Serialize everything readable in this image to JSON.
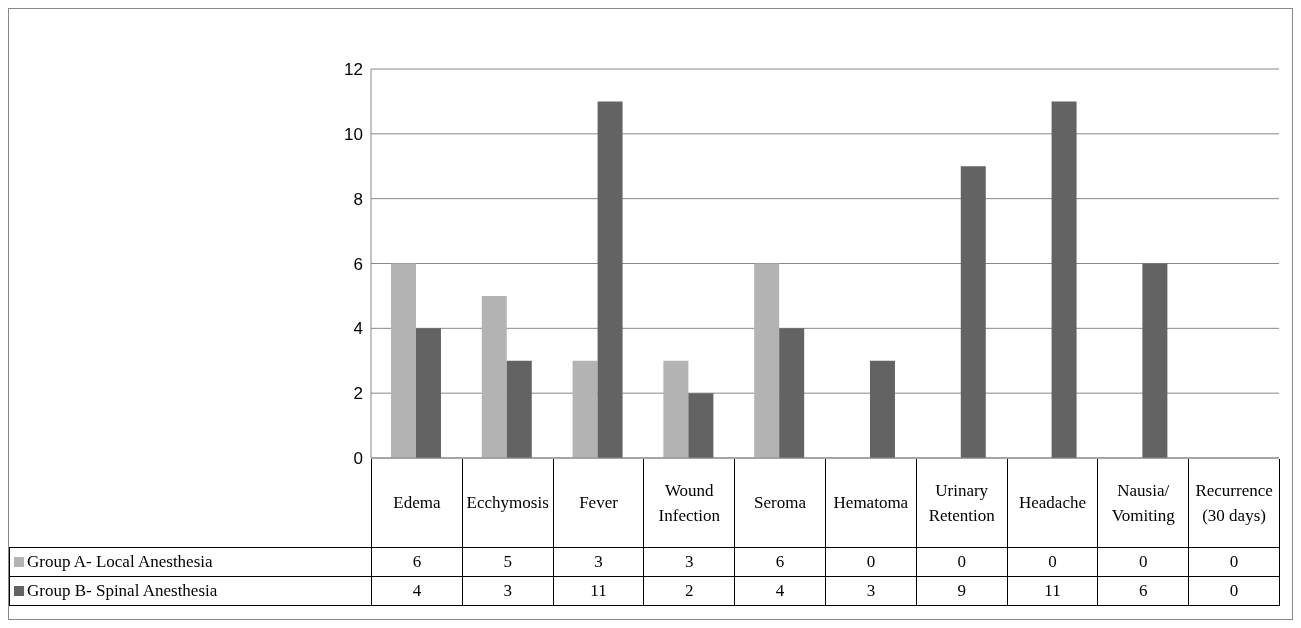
{
  "chart_data": {
    "type": "bar",
    "categories": [
      "Edema",
      "Ecchymosis",
      "Fever",
      "Wound Infection",
      "Seroma",
      "Hematoma",
      "Urinary Retention",
      "Headache",
      "Nausia/ Vomiting",
      "Recurrence (30 days)"
    ],
    "series": [
      {
        "name": "Group A- Local Anesthesia",
        "color": "#b3b3b3",
        "values": [
          6,
          5,
          3,
          3,
          6,
          0,
          0,
          0,
          0,
          0
        ]
      },
      {
        "name": "Group B- Spinal Anesthesia",
        "color": "#636363",
        "values": [
          4,
          3,
          11,
          2,
          4,
          3,
          9,
          11,
          6,
          0
        ]
      }
    ],
    "ylim": [
      0,
      12
    ],
    "yticks": [
      0,
      2,
      4,
      6,
      8,
      10,
      12
    ],
    "grid": "y",
    "legend": "bottom left",
    "data_labels": true
  }
}
